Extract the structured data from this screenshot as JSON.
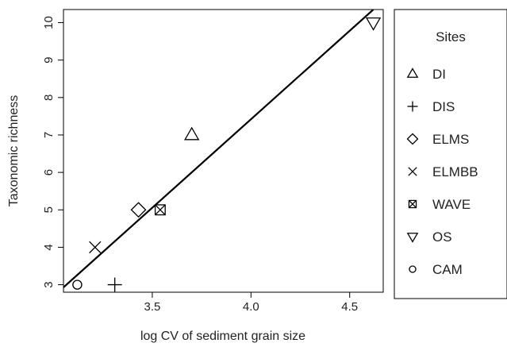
{
  "chart_data": {
    "type": "scatter",
    "title": "",
    "xlabel": "log CV of sediment grain size",
    "ylabel": "Taxonomic richness",
    "xlim": [
      3.05,
      4.67
    ],
    "ylim": [
      2.8,
      10.35
    ],
    "x_ticks": [
      3.5,
      4.0,
      4.5
    ],
    "x_tick_labels": [
      "3.5",
      "4.0",
      "4.5"
    ],
    "y_ticks": [
      3,
      4,
      5,
      6,
      7,
      8,
      9,
      10
    ],
    "y_tick_labels": [
      "3",
      "4",
      "5",
      "6",
      "7",
      "8",
      "9",
      "10"
    ],
    "grid": false,
    "legend": {
      "title": "Sites",
      "placement": "right, outside plot area"
    },
    "series": [
      {
        "name": "DI",
        "marker": "triangle-up",
        "points": [
          {
            "x": 3.7,
            "y": 7
          }
        ]
      },
      {
        "name": "DIS",
        "marker": "plus",
        "points": [
          {
            "x": 3.31,
            "y": 3
          }
        ]
      },
      {
        "name": "ELMS",
        "marker": "diamond",
        "points": [
          {
            "x": 3.43,
            "y": 5
          }
        ]
      },
      {
        "name": "ELMBB",
        "marker": "cross",
        "points": [
          {
            "x": 3.21,
            "y": 4
          }
        ]
      },
      {
        "name": "WAVE",
        "marker": "square-x",
        "points": [
          {
            "x": 3.54,
            "y": 5
          }
        ]
      },
      {
        "name": "OS",
        "marker": "triangle-down",
        "points": [
          {
            "x": 4.62,
            "y": 10
          }
        ]
      },
      {
        "name": "CAM",
        "marker": "circle",
        "points": [
          {
            "x": 3.12,
            "y": 3
          }
        ]
      }
    ],
    "fit_line": {
      "type": "linear",
      "x0": 3.05,
      "y0": 2.93,
      "x1": 4.62,
      "y1": 10.35
    },
    "colors": {
      "ink": "#000000",
      "text": "#222222",
      "background": "#ffffff"
    }
  }
}
